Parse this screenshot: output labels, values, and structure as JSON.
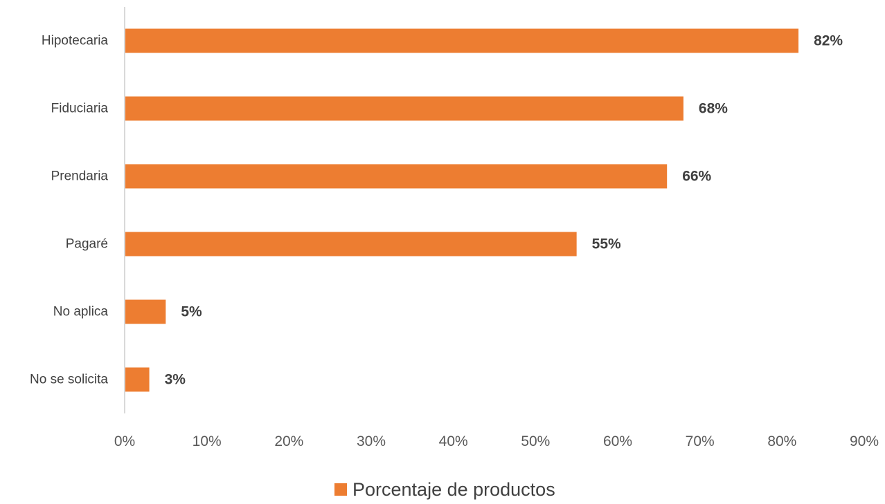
{
  "chart_data": {
    "type": "bar",
    "orientation": "horizontal",
    "categories": [
      "Hipotecaria",
      "Fiduciaria",
      "Prendaria",
      "Pagaré",
      "No aplica",
      "No se solicita"
    ],
    "series": [
      {
        "name": "Porcentaje de productos",
        "values": [
          82,
          68,
          66,
          55,
          5,
          3
        ],
        "labels": [
          "82%",
          "68%",
          "66%",
          "55%",
          "5%",
          "3%"
        ],
        "color": "#ED7D31"
      }
    ],
    "xlim": [
      0,
      90
    ],
    "xticks": [
      0,
      10,
      20,
      30,
      40,
      50,
      60,
      70,
      80,
      90
    ],
    "xtick_labels": [
      "0%",
      "10%",
      "20%",
      "30%",
      "40%",
      "50%",
      "60%",
      "70%",
      "80%",
      "90%"
    ],
    "title": "",
    "xlabel": "",
    "ylabel": "",
    "grid": false,
    "legend": {
      "position": "bottom",
      "entries": [
        "Porcentaje de productos"
      ]
    },
    "colors": {
      "bar": "#ED7D31",
      "axis": "#D9D9D9",
      "text": "#404040"
    }
  }
}
